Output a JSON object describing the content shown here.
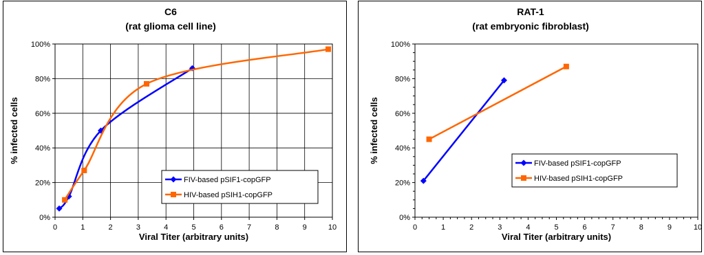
{
  "chart_data": [
    {
      "type": "line",
      "title": "C6",
      "subtitle": "(rat glioma cell line)",
      "xlabel": "Viral Titer (arbitrary units)",
      "ylabel": "% infected cells",
      "xlim": [
        0,
        10
      ],
      "ylim": [
        0,
        100
      ],
      "x_ticks": [
        "0",
        "1",
        "2",
        "3",
        "4",
        "5",
        "6",
        "7",
        "8",
        "9",
        "10"
      ],
      "y_ticks": [
        "0%",
        "20%",
        "40%",
        "60%",
        "80%",
        "100%"
      ],
      "grid": true,
      "legend_position": "lower-right",
      "series": [
        {
          "name": "FIV-based pSIF1-copGFP",
          "color": "#0000FF",
          "marker": "diamond",
          "x": [
            0.15,
            0.5,
            1.65,
            4.95
          ],
          "y": [
            5,
            12,
            50,
            86
          ]
        },
        {
          "name": "HIV-based pSIH1-copGFP",
          "color": "#FF6600",
          "marker": "square",
          "x": [
            0.35,
            1.05,
            3.3,
            9.85
          ],
          "y": [
            10,
            27,
            77,
            97
          ]
        }
      ]
    },
    {
      "type": "line",
      "title": "RAT-1",
      "subtitle": "(rat embryonic fibroblast)",
      "xlabel": "Viral Titer (arbitrary units)",
      "ylabel": "% infected cells",
      "xlim": [
        0,
        10
      ],
      "ylim": [
        0,
        100
      ],
      "x_ticks": [
        "0",
        "1",
        "2",
        "3",
        "4",
        "5",
        "6",
        "7",
        "8",
        "9",
        "10"
      ],
      "y_ticks": [
        "0%",
        "20%",
        "40%",
        "60%",
        "80%",
        "100%"
      ],
      "grid": false,
      "legend_position": "lower-right",
      "series": [
        {
          "name": "FIV-based pSIF1-copGFP",
          "color": "#0000FF",
          "marker": "diamond",
          "x": [
            0.3,
            3.15
          ],
          "y": [
            21,
            79
          ]
        },
        {
          "name": "HIV-based pSIH1-copGFP",
          "color": "#FF6600",
          "marker": "square",
          "x": [
            0.5,
            5.35
          ],
          "y": [
            45,
            87
          ]
        }
      ]
    }
  ]
}
